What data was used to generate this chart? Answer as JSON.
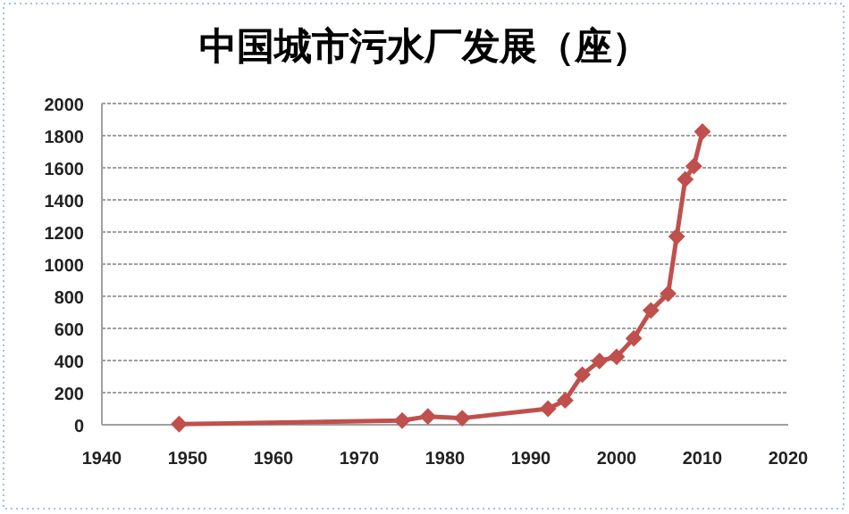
{
  "chart_data": {
    "type": "line",
    "title": "中国城市污水厂发展（座）",
    "x": [
      1949,
      1975,
      1978,
      1982,
      1992,
      1994,
      1996,
      1998,
      2000,
      2002,
      2004,
      2006,
      2007,
      2008,
      2009,
      2010
    ],
    "series": [
      {
        "color": "#c0504d",
        "values": [
          4,
          26,
          52,
          41,
          100,
          152,
          312,
          397,
          423,
          538,
          712,
          816,
          1172,
          1528,
          1610,
          1825
        ]
      }
    ],
    "xlim": [
      1940,
      2020
    ],
    "xticks": [
      1940,
      1950,
      1960,
      1970,
      1980,
      1990,
      2000,
      2010,
      2020
    ],
    "ylim": [
      0,
      2000
    ],
    "yticks": [
      0,
      200,
      400,
      600,
      800,
      1000,
      1200,
      1400,
      1600,
      1800,
      2000
    ],
    "grid": "y",
    "marker": "diamond",
    "line_style": "solid"
  }
}
